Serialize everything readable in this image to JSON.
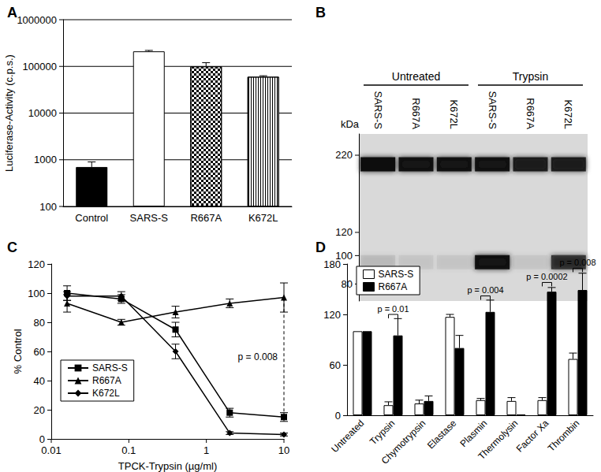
{
  "chart_data": [
    {
      "panel": "A",
      "type": "bar",
      "categories": [
        "Control",
        "SARS-S",
        "R667A",
        "K672L"
      ],
      "values": [
        700,
        210000,
        100000,
        60000
      ],
      "errors": [
        200,
        10000,
        20000,
        3000
      ],
      "colors": [
        "#000000",
        "#ffffff",
        "#ffffff",
        "#ffffff"
      ],
      "y_label": "Luciferase-Activity (c.p.s.)",
      "ylim": [
        100,
        1000000
      ],
      "yticks": [
        100,
        1000,
        10000,
        100000,
        1000000
      ],
      "log": "y",
      "grid": true
    },
    {
      "panel": "B",
      "type": "blot",
      "groups": [
        {
          "label": "Untreated",
          "lanes": 3
        },
        {
          "label": "Trypsin",
          "lanes": 3
        }
      ],
      "categories": [
        "SARS-S",
        "R667A",
        "K672L",
        "SARS-S",
        "R667A",
        "K672L"
      ],
      "y_label": "kDa",
      "ylim": [
        70,
        260
      ],
      "yticks": [
        80,
        100,
        120,
        220
      ],
      "log": "y",
      "bands": [
        {
          "kda": 205,
          "intensity": [
            1,
            0.95,
            0.95,
            0.95,
            0.85,
            0.85
          ]
        },
        {
          "kda": 95,
          "intensity": [
            0.08,
            0.05,
            0.05,
            0.95,
            0.05,
            0.7
          ]
        }
      ]
    },
    {
      "panel": "C",
      "type": "line",
      "x_label": "TPCK-Trypsin (µg/ml)",
      "y_label": "% Control",
      "x": [
        0.016,
        0.08,
        0.4,
        2,
        10
      ],
      "series": [
        {
          "name": "SARS-S",
          "color": "#000000",
          "marker": "square",
          "values": [
            100,
            96,
            75,
            18,
            15
          ],
          "errors": [
            5,
            3,
            5,
            3,
            3
          ]
        },
        {
          "name": "R667A",
          "color": "#000000",
          "marker": "triangle",
          "values": [
            93,
            80,
            87,
            93,
            97
          ],
          "errors": [
            6,
            2,
            4,
            3,
            10
          ]
        },
        {
          "name": "K672L",
          "color": "#000000",
          "marker": "diamond",
          "values": [
            98,
            98,
            60,
            4,
            3
          ],
          "errors": [
            3,
            3,
            5,
            1,
            1
          ]
        }
      ],
      "xlim": [
        0.01,
        10
      ],
      "xticks": [
        0.01,
        0.1,
        1,
        10
      ],
      "ylim": [
        0,
        120
      ],
      "yticks": [
        0,
        20,
        40,
        60,
        80,
        100,
        120
      ],
      "log": "x",
      "legend": "lower left",
      "annotations": [
        {
          "text": "p = 0.008",
          "x": 10,
          "y": 56,
          "between": [
            "SARS-S",
            "R667A"
          ]
        }
      ]
    },
    {
      "panel": "D",
      "type": "bar",
      "categories": [
        "Untreated",
        "Trypsin",
        "Chymotrypsin",
        "Elastase",
        "Plasmin",
        "Thermolysin",
        "Factor Xa",
        "Thrombin"
      ],
      "series": [
        {
          "name": "SARS-S",
          "color": "#ffffff",
          "values": [
            100,
            12,
            14,
            117,
            18,
            17,
            18,
            67
          ],
          "errors": [
            0,
            4,
            4,
            3,
            2,
            4,
            3,
            7
          ]
        },
        {
          "name": "R667A",
          "color": "#000000",
          "values": [
            100,
            95,
            17,
            80,
            123,
            1,
            147,
            149
          ],
          "errors": [
            0,
            20,
            6,
            15,
            14,
            0,
            5,
            20
          ]
        }
      ],
      "ylim": [
        0,
        180
      ],
      "yticks": [
        0,
        60,
        120,
        180
      ],
      "legend": "upper left",
      "annotations": [
        {
          "text": "p = 0.01",
          "category": "Trypsin",
          "y": 120
        },
        {
          "text": "p = 0.004",
          "category": "Plasmin",
          "y": 142
        },
        {
          "text": "p = 0.0002",
          "category": "Factor Xa",
          "y": 158
        },
        {
          "text": "p = 0.008",
          "category": "Thrombin",
          "y": 175
        }
      ]
    }
  ]
}
